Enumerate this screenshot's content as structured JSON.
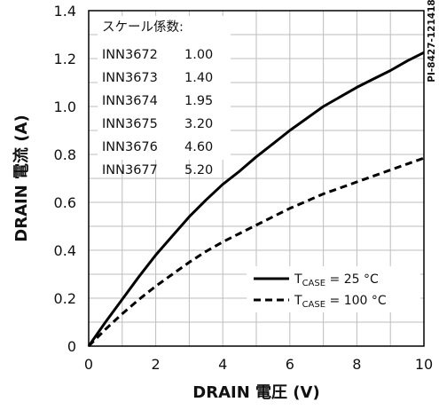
{
  "chart_data": {
    "type": "line",
    "xlabel": "DRAIN 電圧 (V)",
    "ylabel": "DRAIN 電流 (A)",
    "xlim": [
      0,
      10
    ],
    "ylim": [
      0,
      1.4
    ],
    "xticks": [
      "0",
      "2",
      "4",
      "6",
      "8",
      "10"
    ],
    "yticks": [
      "0",
      "0.2",
      "0.4",
      "0.6",
      "0.8",
      "1.0",
      "1.2",
      "1.4"
    ],
    "grid": true,
    "legend_position": "bottom-right",
    "figure_id": "PI-8427-121418",
    "scale_table": {
      "title": "スケール係数:",
      "rows": [
        {
          "part": "INN3672",
          "factor": "1.00"
        },
        {
          "part": "INN3673",
          "factor": "1.40"
        },
        {
          "part": "INN3674",
          "factor": "1.95"
        },
        {
          "part": "INN3675",
          "factor": "3.20"
        },
        {
          "part": "INN3676",
          "factor": "4.60"
        },
        {
          "part": "INN3677",
          "factor": "5.20"
        }
      ]
    },
    "series": [
      {
        "label_prefix": "T",
        "label_sub": "CASE",
        "label_suffix": " = 25 °C",
        "style": "solid",
        "color": "#000000",
        "x": [
          0,
          0.5,
          1,
          1.5,
          2,
          2.5,
          3,
          3.5,
          4,
          4.5,
          5,
          5.5,
          6,
          6.5,
          7,
          7.5,
          8,
          8.5,
          9,
          9.5,
          10
        ],
        "y": [
          0,
          0.1,
          0.195,
          0.29,
          0.38,
          0.46,
          0.54,
          0.61,
          0.675,
          0.73,
          0.79,
          0.845,
          0.9,
          0.95,
          1.0,
          1.04,
          1.08,
          1.115,
          1.15,
          1.19,
          1.225
        ]
      },
      {
        "label_prefix": "T",
        "label_sub": "CASE",
        "label_suffix": " = 100 °C",
        "style": "dashed",
        "color": "#000000",
        "x": [
          0,
          0.5,
          1,
          1.5,
          2,
          2.5,
          3,
          3.5,
          4,
          4.5,
          5,
          5.5,
          6,
          6.5,
          7,
          7.5,
          8,
          8.5,
          9,
          9.5,
          10
        ],
        "y": [
          0,
          0.07,
          0.135,
          0.195,
          0.25,
          0.3,
          0.35,
          0.395,
          0.435,
          0.47,
          0.505,
          0.54,
          0.575,
          0.605,
          0.635,
          0.66,
          0.685,
          0.71,
          0.735,
          0.76,
          0.785
        ]
      }
    ]
  }
}
